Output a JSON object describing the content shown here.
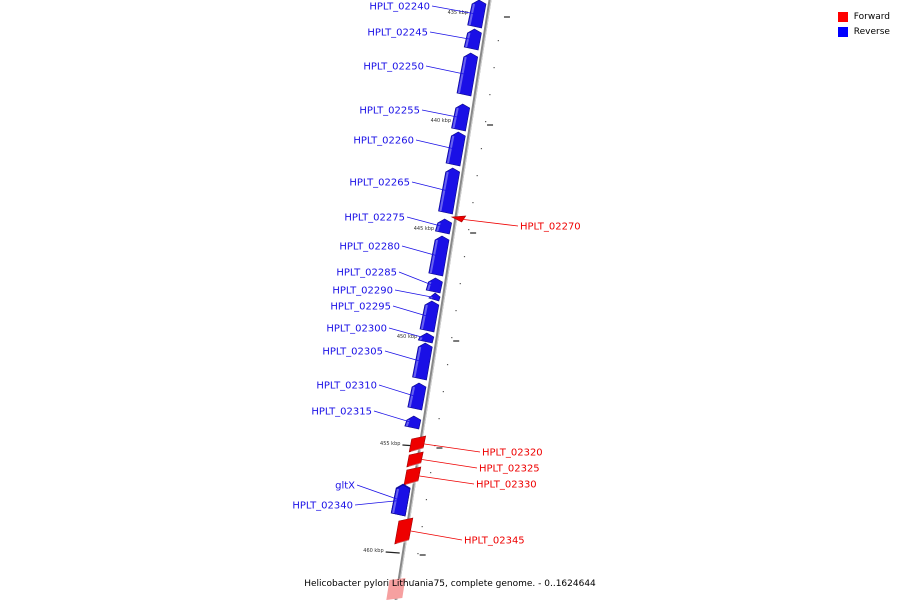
{
  "legend": {
    "items": [
      {
        "label": "Forward",
        "color": "#ff0000"
      },
      {
        "label": "Reverse",
        "color": "#0000ff"
      }
    ]
  },
  "caption": "Helicobacter pylori Lithuania75, complete genome. - 0..1624644",
  "colors": {
    "forward": "#ee0000",
    "reverse": "#1a10e6",
    "backbone": "#888888"
  },
  "ticks": [
    "435 kbp",
    "440 kbp",
    "445 kbp",
    "450 kbp",
    "455 kbp",
    "460 kbp"
  ],
  "genes": [
    {
      "name": "HPLT_02240",
      "strand": "reverse"
    },
    {
      "name": "HPLT_02245",
      "strand": "reverse"
    },
    {
      "name": "HPLT_02250",
      "strand": "reverse"
    },
    {
      "name": "HPLT_02255",
      "strand": "reverse"
    },
    {
      "name": "HPLT_02260",
      "strand": "reverse"
    },
    {
      "name": "HPLT_02265",
      "strand": "reverse"
    },
    {
      "name": "HPLT_02270",
      "strand": "forward"
    },
    {
      "name": "HPLT_02275",
      "strand": "reverse"
    },
    {
      "name": "HPLT_02280",
      "strand": "reverse"
    },
    {
      "name": "HPLT_02285",
      "strand": "reverse"
    },
    {
      "name": "HPLT_02290",
      "strand": "reverse"
    },
    {
      "name": "HPLT_02295",
      "strand": "reverse"
    },
    {
      "name": "HPLT_02300",
      "strand": "reverse"
    },
    {
      "name": "HPLT_02305",
      "strand": "reverse"
    },
    {
      "name": "HPLT_02310",
      "strand": "reverse"
    },
    {
      "name": "HPLT_02315",
      "strand": "reverse"
    },
    {
      "name": "HPLT_02320",
      "strand": "forward"
    },
    {
      "name": "HPLT_02325",
      "strand": "forward"
    },
    {
      "name": "HPLT_02330",
      "strand": "forward"
    },
    {
      "name": "gltX",
      "strand": "reverse"
    },
    {
      "name": "HPLT_02340",
      "strand": "reverse"
    },
    {
      "name": "HPLT_02345",
      "strand": "forward"
    }
  ]
}
